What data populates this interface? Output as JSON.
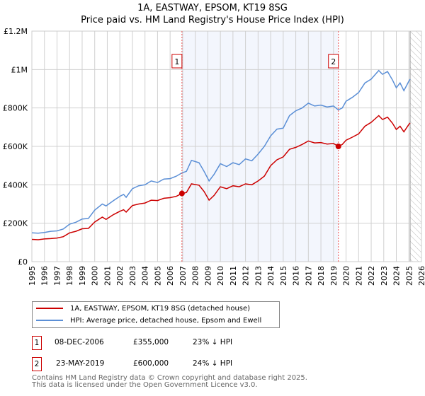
{
  "title_line1": "1A, EASTWAY, EPSOM, KT19 8SG",
  "title_line2": "Price paid vs. HM Land Registry's House Price Index (HPI)",
  "chart_data": {
    "type": "line",
    "title": "1A, EASTWAY, EPSOM, KT19 8SG — Price paid vs. HM Land Registry's House Price Index (HPI)",
    "xlim": [
      1995,
      2026
    ],
    "ylim": [
      0,
      1200000
    ],
    "x_ticks": [
      "1995",
      "1996",
      "1997",
      "1998",
      "1999",
      "2000",
      "2001",
      "2002",
      "2003",
      "2004",
      "2005",
      "2006",
      "2007",
      "2008",
      "2009",
      "2010",
      "2011",
      "2012",
      "2013",
      "2014",
      "2015",
      "2016",
      "2017",
      "2018",
      "2019",
      "2020",
      "2021",
      "2022",
      "2023",
      "2024",
      "2025",
      "2026"
    ],
    "y_ticks": [
      {
        "v": 0,
        "label": "£0"
      },
      {
        "v": 200000,
        "label": "£200K"
      },
      {
        "v": 400000,
        "label": "£400K"
      },
      {
        "v": 600000,
        "label": "£600K"
      },
      {
        "v": 800000,
        "label": "£800K"
      },
      {
        "v": 1000000,
        "label": "£1M"
      },
      {
        "v": 1200000,
        "label": "£1.2M"
      }
    ],
    "grid": true,
    "shaded_range": [
      2006.94,
      2019.39
    ],
    "forecast_hatch_from": 2025.1,
    "series": [
      {
        "name": "1A, EASTWAY, EPSOM, KT19 8SG (detached house)",
        "color": "#cc0000",
        "x": [
          1995,
          1995.5,
          1996,
          1996.5,
          1997,
          1997.5,
          1998,
          1998.5,
          1999,
          1999.5,
          2000,
          2000.6,
          2000.9,
          2001.5,
          2002,
          2002.3,
          2002.5,
          2003,
          2003.5,
          2004,
          2004.5,
          2005,
          2005.5,
          2006,
          2006.5,
          2006.94,
          2007.3,
          2007.7,
          2008.3,
          2008.7,
          2009.1,
          2009.5,
          2010,
          2010.5,
          2011,
          2011.5,
          2012,
          2012.5,
          2013,
          2013.5,
          2014,
          2014.5,
          2015,
          2015.5,
          2016,
          2016.5,
          2017,
          2017.5,
          2018,
          2018.5,
          2019,
          2019.39,
          2019.7,
          2020,
          2020.5,
          2021,
          2021.5,
          2022,
          2022.6,
          2022.9,
          2023.3,
          2023.7,
          2024,
          2024.3,
          2024.6,
          2025,
          2025.1
        ],
        "y": [
          116,
          114,
          118,
          120,
          123,
          130,
          150,
          158,
          171,
          173,
          206,
          232,
          220,
          245,
          262,
          270,
          258,
          292,
          300,
          305,
          320,
          318,
          330,
          333,
          340,
          355,
          360,
          405,
          398,
          365,
          320,
          345,
          390,
          380,
          395,
          390,
          405,
          400,
          420,
          445,
          500,
          530,
          545,
          585,
          595,
          610,
          628,
          618,
          620,
          612,
          615,
          600,
          610,
          632,
          648,
          665,
          705,
          725,
          760,
          740,
          752,
          720,
          688,
          705,
          676,
          715,
          722
        ]
      },
      {
        "name": "HPI: Average price, detached house, Epsom and Ewell",
        "color": "#5b8fd6",
        "x": [
          1995,
          1995.5,
          1996,
          1996.5,
          1997,
          1997.5,
          1998,
          1998.5,
          1999,
          1999.5,
          2000,
          2000.6,
          2000.9,
          2001.5,
          2002,
          2002.3,
          2002.5,
          2003,
          2003.5,
          2004,
          2004.5,
          2005,
          2005.5,
          2006,
          2006.5,
          2006.94,
          2007.3,
          2007.7,
          2008.3,
          2008.7,
          2009.1,
          2009.5,
          2010,
          2010.5,
          2011,
          2011.5,
          2012,
          2012.5,
          2013,
          2013.5,
          2014,
          2014.5,
          2015,
          2015.5,
          2016,
          2016.5,
          2017,
          2017.5,
          2018,
          2018.5,
          2019,
          2019.39,
          2019.7,
          2020,
          2020.5,
          2021,
          2021.5,
          2022,
          2022.6,
          2022.9,
          2023.3,
          2023.7,
          2024,
          2024.3,
          2024.6,
          2025,
          2025.1
        ],
        "y": [
          150,
          148,
          152,
          158,
          160,
          170,
          195,
          205,
          222,
          225,
          268,
          300,
          290,
          318,
          340,
          350,
          335,
          380,
          395,
          400,
          420,
          412,
          430,
          432,
          445,
          462,
          470,
          527,
          515,
          470,
          420,
          455,
          510,
          495,
          515,
          505,
          535,
          525,
          560,
          600,
          655,
          690,
          695,
          760,
          785,
          800,
          825,
          810,
          815,
          805,
          810,
          790,
          800,
          835,
          855,
          880,
          930,
          950,
          995,
          975,
          990,
          945,
          905,
          930,
          890,
          940,
          950
        ]
      }
    ],
    "annotations": [
      {
        "label": "1",
        "x": 2006.94,
        "y": 355000
      },
      {
        "label": "2",
        "x": 2019.39,
        "y": 600000
      }
    ],
    "legend_position": "bottom-left"
  },
  "legend": {
    "property": "1A, EASTWAY, EPSOM, KT19 8SG (detached house)",
    "hpi": "HPI: Average price, detached house, Epsom and Ewell"
  },
  "sales": [
    {
      "num": "1",
      "date": "08-DEC-2006",
      "price": "£355,000",
      "vs_hpi": "23% ↓ HPI"
    },
    {
      "num": "2",
      "date": "23-MAY-2019",
      "price": "£600,000",
      "vs_hpi": "24% ↓ HPI"
    }
  ],
  "footer_line1": "Contains HM Land Registry data © Crown copyright and database right 2025.",
  "footer_line2": "This data is licensed under the Open Government Licence v3.0."
}
